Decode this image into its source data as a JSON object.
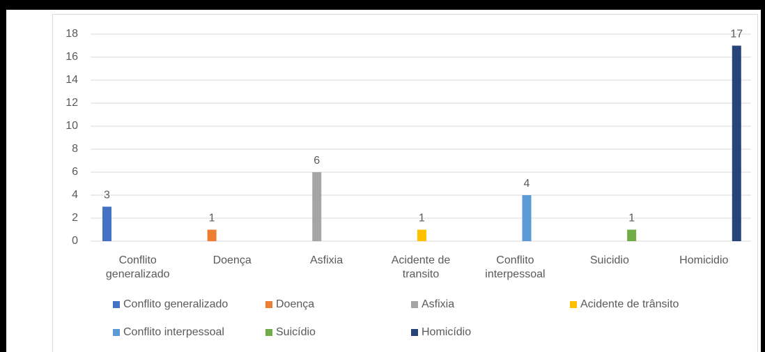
{
  "chart_data": {
    "type": "bar",
    "categories": [
      "Conflito generalizado",
      "Doença",
      "Asfixia",
      "Acidente de transito",
      "Conflito interpessoal",
      "Suicidio",
      "Homicidio"
    ],
    "series": [
      {
        "name": "Conflito generalizado",
        "color": "#4472c4",
        "values": [
          3,
          null,
          null,
          null,
          null,
          null,
          null
        ]
      },
      {
        "name": "Doença",
        "color": "#ed7d31",
        "values": [
          null,
          1,
          null,
          null,
          null,
          null,
          null
        ]
      },
      {
        "name": "Asfixia",
        "color": "#a5a5a5",
        "values": [
          null,
          null,
          6,
          null,
          null,
          null,
          null
        ]
      },
      {
        "name": "Acidente de trânsito",
        "color": "#ffc000",
        "values": [
          null,
          null,
          null,
          1,
          null,
          null,
          null
        ]
      },
      {
        "name": "Conflito interpessoal",
        "color": "#5b9bd5",
        "values": [
          null,
          null,
          null,
          null,
          4,
          null,
          null
        ]
      },
      {
        "name": "Suicídio",
        "color": "#70ad47",
        "values": [
          null,
          null,
          null,
          null,
          null,
          1,
          null
        ]
      },
      {
        "name": "Homicídio",
        "color": "#264478",
        "values": [
          null,
          null,
          null,
          null,
          null,
          null,
          17
        ]
      }
    ],
    "ylim": [
      0,
      18
    ],
    "yticks": [
      0,
      2,
      4,
      6,
      8,
      10,
      12,
      14,
      16,
      18
    ],
    "grid": true,
    "legend": "bottom"
  }
}
